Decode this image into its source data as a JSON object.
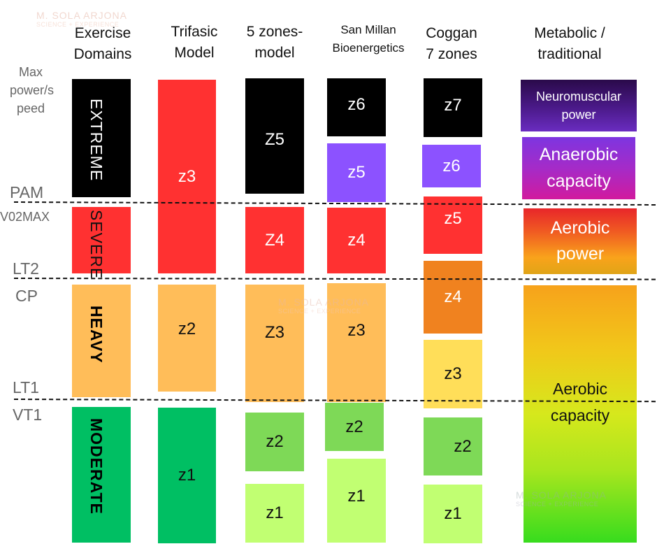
{
  "watermark": {
    "name": "M. SOLA ARJONA",
    "tagline": "SCIENCE + EXPERIENCE"
  },
  "headers": {
    "exercise_domains": [
      "Exercise",
      "Domains"
    ],
    "trifasic": [
      "Trifasic",
      "Model"
    ],
    "five_zones": [
      "5 zones-",
      "model"
    ],
    "san_millan": [
      "San Millan",
      "Bioenergetics"
    ],
    "coggan": [
      "Coggan",
      "7 zones"
    ],
    "metabolic": [
      "Metabolic /",
      "traditional"
    ]
  },
  "thresholds": {
    "max_power": [
      "Max",
      "power/s",
      "peed"
    ],
    "pam": "PAM",
    "vo2max": "V02MAX",
    "lt2": "LT2",
    "cp": "CP",
    "lt1": "LT1",
    "vt1": "VT1"
  },
  "domains": {
    "extreme": "EXTREME",
    "severe": "SEVERE",
    "heavy": "HEAVY",
    "moderate": "MODERATE"
  },
  "trifasic": {
    "z3": "z3",
    "z2": "z2",
    "z1": "z1"
  },
  "five_zones": {
    "z5": "Z5",
    "z4": "Z4",
    "z3": "Z3",
    "z2": "z2",
    "z1": "z1"
  },
  "san_millan": {
    "z6": "z6",
    "z5": "z5",
    "z4": "z4",
    "z3": "z3",
    "z2": "z2",
    "z1": "z1"
  },
  "coggan": {
    "z7": "z7",
    "z6": "z6",
    "z5": "z5",
    "z4": "z4",
    "z3": "z3",
    "z2": "z2",
    "z1": "z1"
  },
  "metabolic": {
    "neuromuscular": [
      "Neuromuscular",
      "power"
    ],
    "anaerobic": [
      "Anaerobic",
      "capacity"
    ],
    "aerobic_power": [
      "Aerobic",
      "power"
    ],
    "aerobic_capacity": [
      "Aerobic",
      "capacity"
    ]
  },
  "colors": {
    "black": "#000000",
    "red": "#ff3131",
    "orange_light": "#ffbd59",
    "green_dark": "#00bf63",
    "green_mid": "#7ed957",
    "green_light": "#c1ff72",
    "purple": "#8c52ff",
    "orange_dark": "#f0821f",
    "yellow": "#ffde59"
  }
}
